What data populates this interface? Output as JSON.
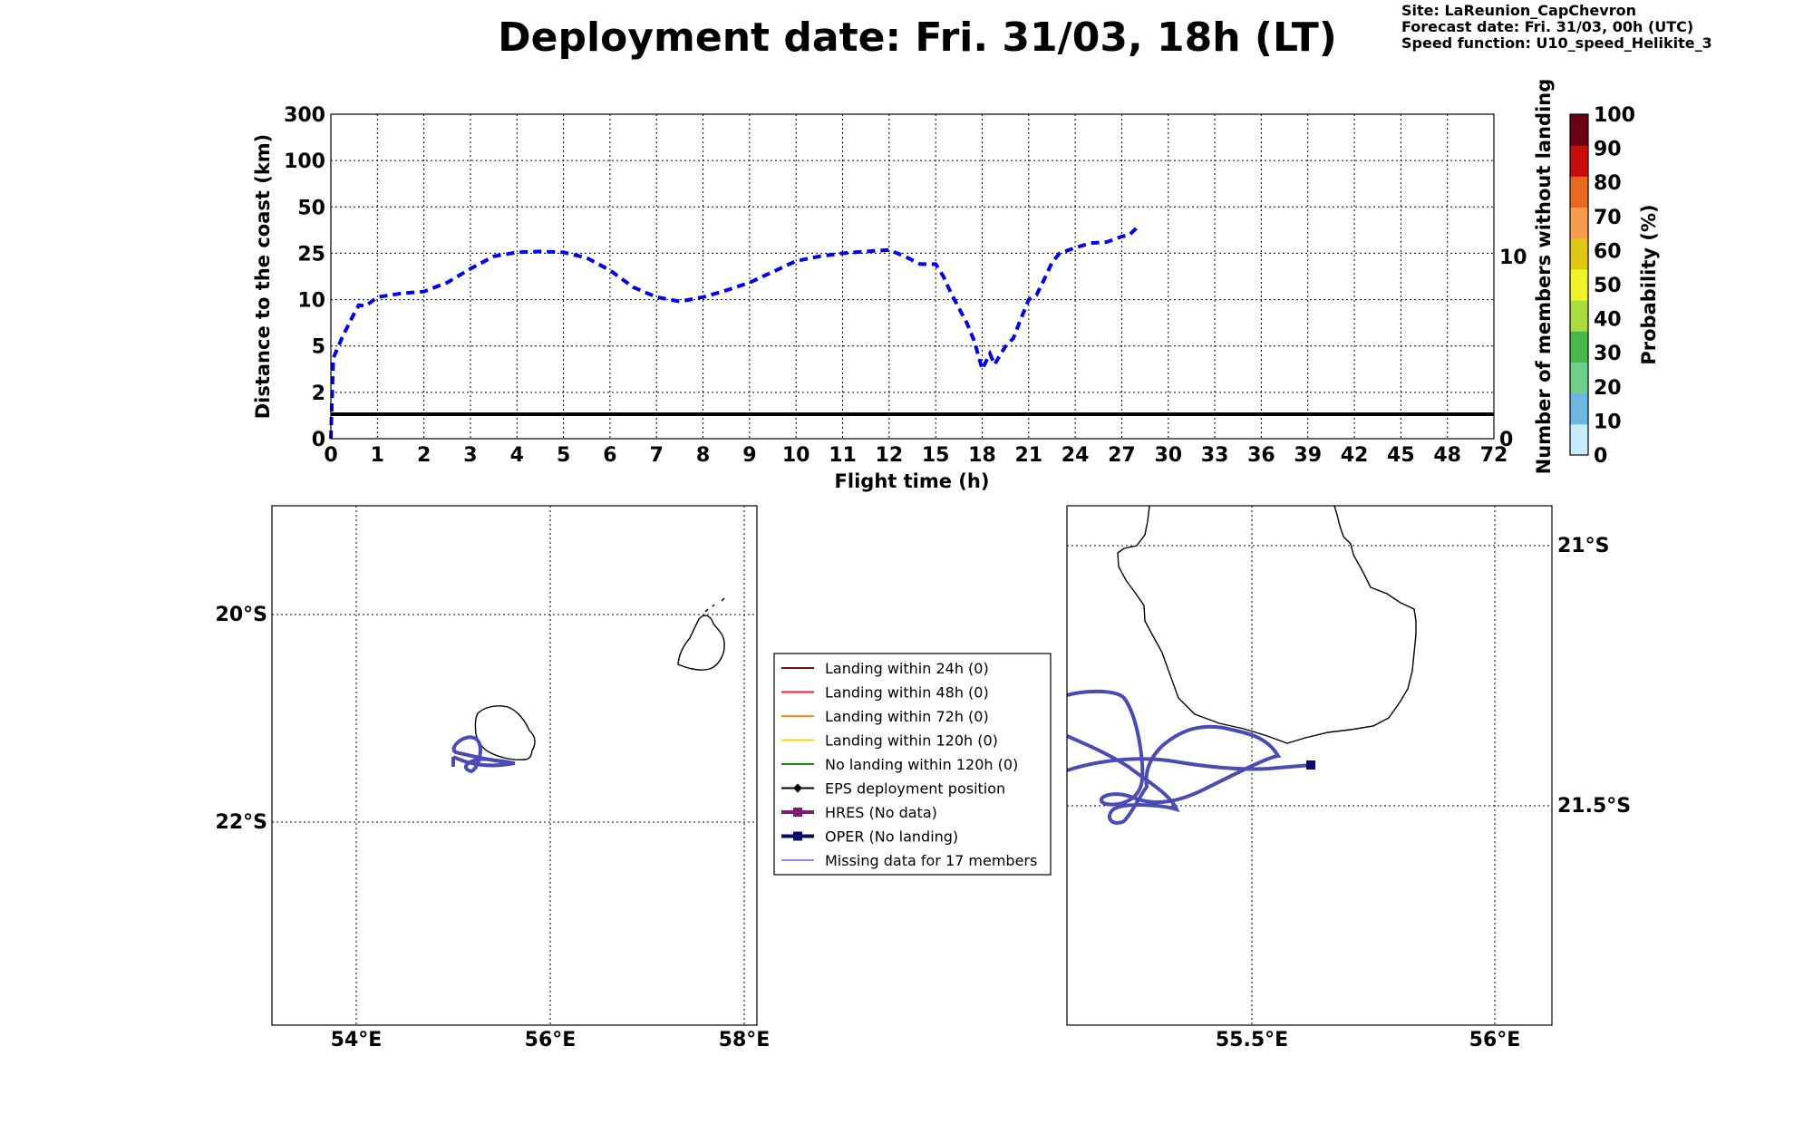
{
  "header": {
    "title": "Deployment date: Fri. 31/03, 18h (LT)",
    "site": "Site: LaReunion_CapChevron",
    "forecast": "Forecast date: Fri. 31/03, 00h (UTC)",
    "speed": "Speed function: U10_speed_Helikite_3"
  },
  "chart_data": [
    {
      "type": "line",
      "xlabel": "Flight time (h)",
      "ylabel": "Distance to the coast (km)",
      "y2label": "Number of members without landing",
      "x_ticks": [
        "0",
        "1",
        "2",
        "3",
        "4",
        "5",
        "6",
        "7",
        "8",
        "9",
        "10",
        "11",
        "12",
        "15",
        "18",
        "21",
        "24",
        "27",
        "30",
        "33",
        "36",
        "39",
        "42",
        "45",
        "48",
        "72"
      ],
      "y_ticks": [
        "0",
        "2",
        "5",
        "10",
        "25",
        "50",
        "100",
        "300"
      ],
      "y2_ticks": [
        "0",
        "10"
      ],
      "y_scale": "piecewise",
      "grid": true,
      "series": [
        {
          "style": "dashed",
          "color": "#0000ee",
          "x": [
            0,
            0.05,
            0.25,
            0.5,
            0.6,
            0.75,
            1,
            1.5,
            2,
            2.5,
            3,
            3.5,
            4,
            4.5,
            5,
            5.5,
            6,
            6.5,
            7,
            7.5,
            8,
            8.5,
            9,
            9.5,
            10,
            10.5,
            11,
            11.5,
            12,
            13,
            14,
            15,
            15.5,
            16,
            17,
            17.5,
            18,
            18.5,
            18.8,
            19.2,
            19.6,
            20,
            20.4,
            21,
            21.5,
            22,
            22.5,
            23,
            24,
            25,
            26,
            27,
            27.5,
            28
          ],
          "y": [
            0,
            4.2,
            6,
            8.5,
            9.4,
            9.3,
            10.8,
            12,
            12.6,
            15.5,
            20,
            24,
            25.5,
            26,
            25.5,
            23.5,
            19.5,
            14,
            10.8,
            9.8,
            10.8,
            13,
            15.5,
            19,
            22.5,
            24,
            25,
            26,
            26.8,
            24,
            21.5,
            21.5,
            17.5,
            12,
            7.5,
            5.5,
            3.5,
            4.5,
            3.8,
            4.5,
            5.2,
            5.8,
            7.5,
            10,
            11.5,
            16.5,
            22,
            25,
            28,
            30.5,
            31,
            34,
            35,
            39
          ]
        },
        {
          "style": "solid",
          "color": "#000000",
          "x": [
            0,
            72
          ],
          "y": [
            1.5,
            1.5
          ]
        }
      ]
    },
    {
      "type": "heatmap",
      "title": "Probability (%)",
      "ticks": [
        "0",
        "10",
        "20",
        "30",
        "40",
        "50",
        "60",
        "70",
        "80",
        "90",
        "100"
      ],
      "colors": [
        "#c6ecfb",
        "#6cb7e0",
        "#6ed08b",
        "#47b84a",
        "#a9dc3e",
        "#f2f22a",
        "#e0c714",
        "#f79c4f",
        "#e8691f",
        "#c80b0b",
        "#6b0015"
      ]
    }
  ],
  "maps": {
    "left": {
      "lon_labels": [
        "54°E",
        "56°E",
        "58°E"
      ],
      "lat_labels": [
        "20°S",
        "22°S"
      ]
    },
    "right": {
      "lon_labels": [
        "55.5°E",
        "56°E"
      ],
      "lat_labels": [
        "21°S",
        "21.5°S"
      ]
    }
  },
  "legend": [
    {
      "label": "Landing within 24h (0)",
      "color": "#7a0b12",
      "marker": "none",
      "width": 2
    },
    {
      "label": "Landing within 48h (0)",
      "color": "#ff1a1a",
      "marker": "none",
      "width": 2
    },
    {
      "label": "Landing within 72h (0)",
      "color": "#ff8c1a",
      "marker": "none",
      "width": 2
    },
    {
      "label": "Landing within 120h (0)",
      "color": "#ffd21a",
      "marker": "none",
      "width": 2
    },
    {
      "label": "No landing within 120h (0)",
      "color": "#138a13",
      "marker": "none",
      "width": 2
    },
    {
      "label": "EPS deployment position",
      "color": "#000000",
      "marker": "diamond",
      "width": 2
    },
    {
      "label": "HRES (No data)",
      "color": "#7a1a7a",
      "marker": "square",
      "width": 4
    },
    {
      "label": "OPER (No landing)",
      "color": "#0a0a6e",
      "marker": "square",
      "width": 4
    },
    {
      "label": "Missing data for 17 members",
      "color": "#6464ff",
      "marker": "none",
      "width": 1.5
    }
  ]
}
